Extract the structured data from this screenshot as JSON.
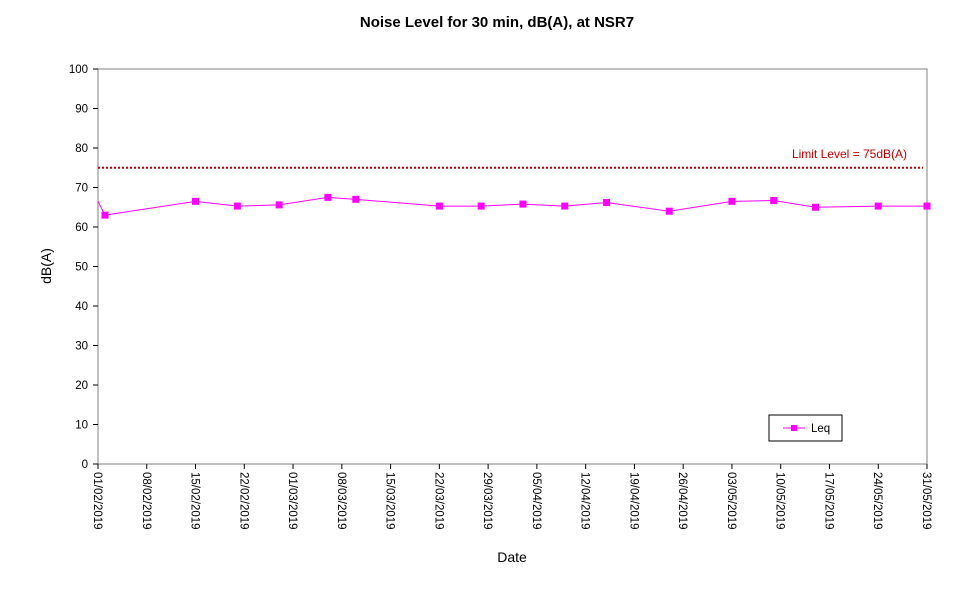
{
  "chart_data": {
    "type": "line",
    "title": "Noise Level for 30 min, dB(A), at NSR7",
    "xlabel": "Date",
    "ylabel": "dB(A)",
    "ylim": [
      0,
      100
    ],
    "yticks": [
      0,
      10,
      20,
      30,
      40,
      50,
      60,
      70,
      80,
      90,
      100
    ],
    "xlim": [
      "01/02/2019",
      "31/05/2019"
    ],
    "xtick_labels": [
      "01/02/2019",
      "08/02/2019",
      "15/02/2019",
      "22/02/2019",
      "01/03/2019",
      "08/03/2019",
      "15/03/2019",
      "22/03/2019",
      "29/03/2019",
      "05/04/2019",
      "12/04/2019",
      "19/04/2019",
      "26/04/2019",
      "03/05/2019",
      "10/05/2019",
      "17/05/2019",
      "24/05/2019",
      "31/05/2019"
    ],
    "grid": false,
    "legend_position": "bottom-right",
    "series": [
      {
        "name": "Leq",
        "color": "#ff00ff",
        "marker": "square",
        "line_start": {
          "x": "01/02/2019",
          "y": 66.5
        },
        "points": [
          {
            "x": "02/02/2019",
            "y": 63.0
          },
          {
            "x": "15/02/2019",
            "y": 66.5
          },
          {
            "x": "21/02/2019",
            "y": 65.3
          },
          {
            "x": "27/02/2019",
            "y": 65.6
          },
          {
            "x": "06/03/2019",
            "y": 67.5
          },
          {
            "x": "10/03/2019",
            "y": 67.0
          },
          {
            "x": "22/03/2019",
            "y": 65.3
          },
          {
            "x": "28/03/2019",
            "y": 65.3
          },
          {
            "x": "03/04/2019",
            "y": 65.8
          },
          {
            "x": "09/04/2019",
            "y": 65.3
          },
          {
            "x": "15/04/2019",
            "y": 66.2
          },
          {
            "x": "24/04/2019",
            "y": 64.0
          },
          {
            "x": "03/05/2019",
            "y": 66.5
          },
          {
            "x": "09/05/2019",
            "y": 66.7
          },
          {
            "x": "15/05/2019",
            "y": 65.0
          },
          {
            "x": "24/05/2019",
            "y": 65.3
          },
          {
            "x": "31/05/2019",
            "y": 65.3
          }
        ]
      }
    ],
    "limit_line": {
      "y": 75,
      "label": "Limit Level  = 75dB(A)",
      "color": "#c00000",
      "style": "dotted"
    }
  }
}
